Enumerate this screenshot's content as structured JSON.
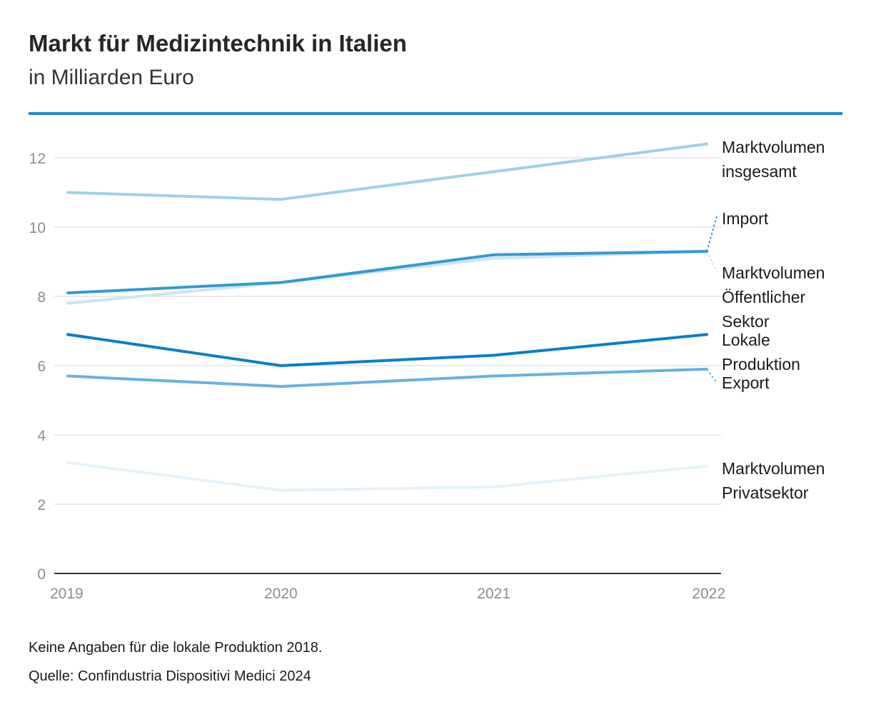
{
  "header": {
    "title": "Markt für Medizintechnik in Italien",
    "subtitle": "in Milliarden Euro"
  },
  "colors": {
    "accent_rule": "#1a8ad4",
    "gridline": "#e3e3e3",
    "axis": "#333333",
    "label_text": "#1a1a1a",
    "tick_text": "#8c8c8c"
  },
  "chart_data": {
    "type": "line",
    "title": "Markt für Medizintechnik in Italien",
    "subtitle": "in Milliarden Euro",
    "x": [
      "2019",
      "2020",
      "2021",
      "2022"
    ],
    "ylim": [
      0,
      13
    ],
    "yticks": [
      0,
      2,
      4,
      6,
      8,
      10,
      12
    ],
    "grid": true,
    "legend": "direct labels at right end of lines",
    "series": [
      {
        "name": "Marktvolumen insgesamt",
        "label_lines": [
          "Marktvolumen",
          "insgesamt"
        ],
        "values": [
          11.0,
          10.8,
          11.6,
          12.4
        ],
        "color": "#9ed0ea"
      },
      {
        "name": "Import",
        "label_lines": [
          "Import"
        ],
        "values": [
          8.1,
          8.4,
          9.2,
          9.3
        ],
        "color": "#3399d6"
      },
      {
        "name": "Marktvolumen Öffentlicher Sektor",
        "label_lines": [
          "Marktvolumen",
          "Öffentlicher",
          "Sektor"
        ],
        "values": [
          7.8,
          8.4,
          9.1,
          9.3
        ],
        "color": "#cce5f5"
      },
      {
        "name": "Lokale Produktion",
        "label_lines": [
          "Lokale",
          "Produktion"
        ],
        "values": [
          6.9,
          6.0,
          6.3,
          6.9
        ],
        "color": "#0a7fc7"
      },
      {
        "name": "Export",
        "label_lines": [
          "Export"
        ],
        "values": [
          5.7,
          5.4,
          5.7,
          5.9
        ],
        "color": "#66b3e0"
      },
      {
        "name": "Marktvolumen Privatsektor",
        "label_lines": [
          "Marktvolumen",
          "Privatsektor"
        ],
        "values": [
          3.2,
          2.4,
          2.5,
          3.1
        ],
        "color": "#e6f2fa"
      }
    ]
  },
  "footer": {
    "note": "Keine Angaben für die lokale Produktion 2018.",
    "source": "Quelle: Confindustria Dispositivi Medici 2024"
  }
}
